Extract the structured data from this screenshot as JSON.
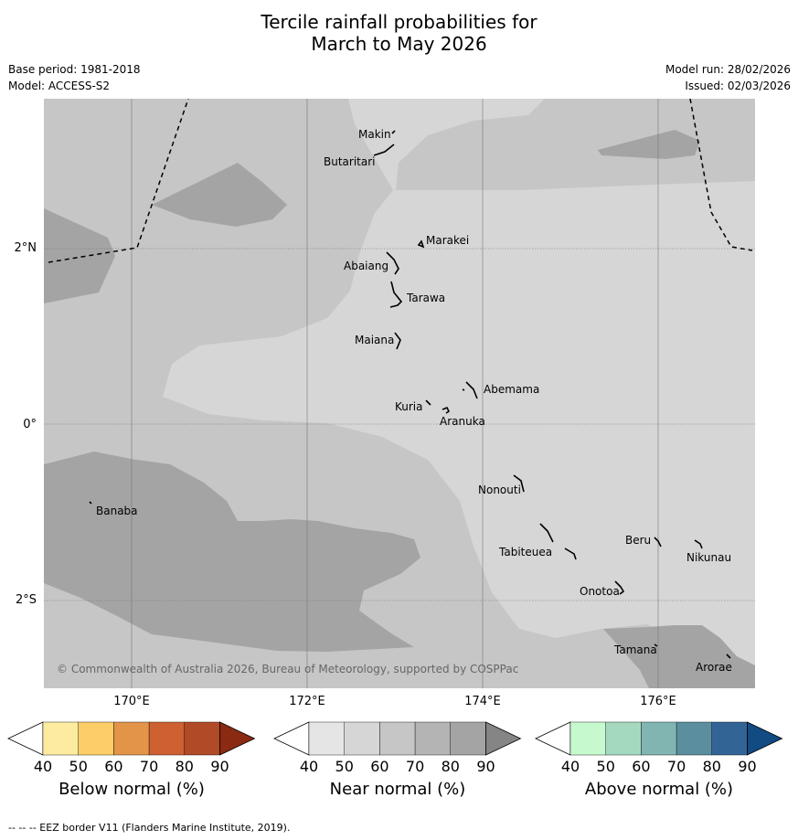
{
  "title_line1": "Tercile rainfall probabilities for",
  "title_line2": "March to May 2026",
  "base_period": "Base period: 1981-2018",
  "model": "Model: ACCESS-S2",
  "model_run": "Model run: 28/02/2026",
  "issued": "Issued: 02/03/2026",
  "copyright": "© Commonwealth of Australia 2026, Bureau of Meteorology, supported by COSPPac",
  "lat_labels": [
    "2°N",
    "0°",
    "2°S"
  ],
  "lon_labels": [
    "170°E",
    "172°E",
    "174°E",
    "176°E"
  ],
  "places": [
    {
      "name": "Makin"
    },
    {
      "name": "Butaritari"
    },
    {
      "name": "Marakei"
    },
    {
      "name": "Abaiang"
    },
    {
      "name": "Tarawa"
    },
    {
      "name": "Maiana"
    },
    {
      "name": "Abemama"
    },
    {
      "name": "Kuria"
    },
    {
      "name": "Aranuka"
    },
    {
      "name": "Banaba"
    },
    {
      "name": "Nonouti"
    },
    {
      "name": "Beru"
    },
    {
      "name": "Nikunau"
    },
    {
      "name": "Tabiteuea"
    },
    {
      "name": "Onotoa"
    },
    {
      "name": "Tamana"
    },
    {
      "name": "Arorae"
    }
  ],
  "colorbars": [
    {
      "label": "Below normal (%)",
      "ticks": [
        "40",
        "50",
        "60",
        "70",
        "80",
        "90"
      ],
      "colors": [
        "#ffffff",
        "#fdeca0",
        "#fdcd67",
        "#e39448",
        "#cd6131",
        "#b14a26",
        "#8b2a12"
      ]
    },
    {
      "label": "Near normal (%)",
      "ticks": [
        "40",
        "50",
        "60",
        "70",
        "80",
        "90"
      ],
      "colors": [
        "#ffffff",
        "#e5e5e5",
        "#d6d6d6",
        "#c6c6c6",
        "#b4b4b4",
        "#a4a4a4",
        "#858585"
      ]
    },
    {
      "label": "Above normal (%)",
      "ticks": [
        "40",
        "50",
        "60",
        "70",
        "80",
        "90"
      ],
      "colors": [
        "#ffffff",
        "#c7f9cf",
        "#a4d9bf",
        "#80b5b2",
        "#5b8fa0",
        "#336496",
        "#124a82"
      ]
    }
  ],
  "footnote": "--  --  -- EEZ border V11 (Flanders Marine Institute, 2019).",
  "map_colors": {
    "base": "#c6c6c6",
    "light": "#d6d6d6",
    "dark": "#a4a4a4"
  }
}
